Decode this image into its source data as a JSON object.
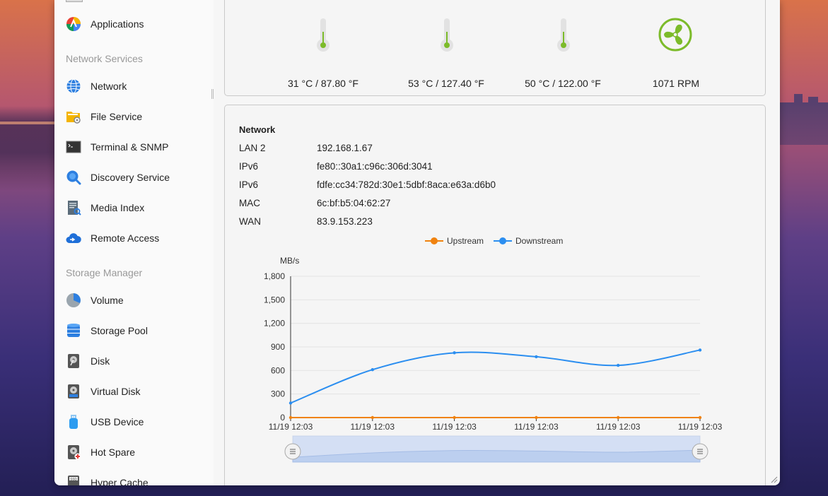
{
  "sidebar": {
    "top_item": {
      "label": "Applications",
      "icon": "applications-icon"
    },
    "sections": [
      {
        "title": "Network Services",
        "items": [
          {
            "label": "Network",
            "icon": "globe-icon"
          },
          {
            "label": "File Service",
            "icon": "folder-gear-icon"
          },
          {
            "label": "Terminal & SNMP",
            "icon": "terminal-icon"
          },
          {
            "label": "Discovery Service",
            "icon": "magnifier-icon"
          },
          {
            "label": "Media Index",
            "icon": "media-index-icon"
          },
          {
            "label": "Remote Access",
            "icon": "cloud-icon"
          }
        ]
      },
      {
        "title": "Storage Manager",
        "items": [
          {
            "label": "Volume",
            "icon": "pie-icon"
          },
          {
            "label": "Storage Pool",
            "icon": "database-icon"
          },
          {
            "label": "Disk",
            "icon": "hdd-icon"
          },
          {
            "label": "Virtual Disk",
            "icon": "virtual-disk-icon"
          },
          {
            "label": "USB Device",
            "icon": "usb-icon"
          },
          {
            "label": "Hot Spare",
            "icon": "hot-spare-icon"
          },
          {
            "label": "Hyper Cache",
            "icon": "ssd-icon"
          }
        ]
      }
    ]
  },
  "hardware": {
    "sensors": [
      {
        "value": "31 °C / 87.80 °F",
        "icon": "thermometer-icon"
      },
      {
        "value": "53 °C / 127.40 °F",
        "icon": "thermometer-icon"
      },
      {
        "value": "50 °C / 122.00 °F",
        "icon": "thermometer-icon"
      },
      {
        "value": "1071 RPM",
        "icon": "fan-icon"
      }
    ],
    "accent_color": "#7cbb2a"
  },
  "network": {
    "title": "Network",
    "rows": [
      {
        "key": "LAN 2",
        "value": "192.168.1.67"
      },
      {
        "key": "IPv6",
        "value": "fe80::30a1:c96c:306d:3041"
      },
      {
        "key": "IPv6",
        "value": "fdfe:cc34:782d:30e1:5dbf:8aca:e63a:d6b0"
      },
      {
        "key": "MAC",
        "value": "6c:bf:b5:04:62:27"
      },
      {
        "key": "WAN",
        "value": "83.9.153.223"
      }
    ]
  },
  "chart_data": {
    "type": "line",
    "ylabel": "MB/s",
    "ylim": [
      0,
      1800
    ],
    "yticks": [
      "0",
      "300",
      "600",
      "900",
      "1,200",
      "1,500",
      "1,800"
    ],
    "categories": [
      "11/19 12:03",
      "11/19 12:03",
      "11/19 12:03",
      "11/19 12:03",
      "11/19 12:03",
      "11/19 12:03"
    ],
    "series": [
      {
        "name": "Upstream",
        "color": "#f0820f",
        "values": [
          0,
          0,
          0,
          0,
          0,
          0
        ]
      },
      {
        "name": "Downstream",
        "color": "#2b8ef0",
        "values": [
          185,
          610,
          825,
          775,
          665,
          860
        ]
      }
    ],
    "legend_position": "top",
    "grid": true
  }
}
